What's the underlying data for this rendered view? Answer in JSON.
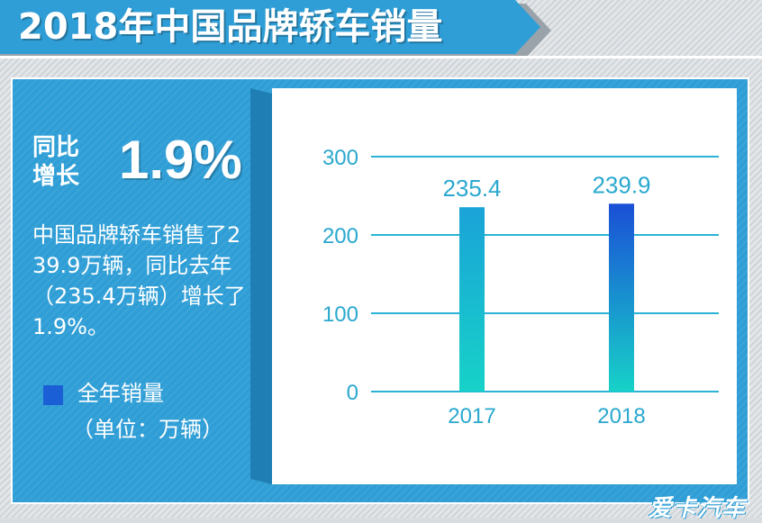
{
  "title": "2018年中国品牌轿车销量",
  "yoy": {
    "label": "同比增长",
    "value": "1.9%"
  },
  "description": "中国品牌轿车销售了239.9万辆，同比去年（235.4万辆）增长了1.9%。",
  "legend": {
    "label": "全年销量",
    "unit": "（单位：万辆）"
  },
  "watermark": "爱卡汽车",
  "colors": {
    "accent": "#2f9ed6",
    "bar_2017_top": "#1aa3d8",
    "bar_2017_bottom": "#17d2c8",
    "bar_2018_top": "#1a4fd6",
    "bar_2018_bottom": "#17d2c8",
    "gridline": "#2ab3d6",
    "legend": "#1a5fd6"
  },
  "chart_data": {
    "type": "bar",
    "categories": [
      "2017",
      "2018"
    ],
    "values": [
      235.4,
      239.9
    ],
    "value_labels": [
      "235.4",
      "239.9"
    ],
    "ylim": [
      0,
      300
    ],
    "yticks": [
      0,
      100,
      200,
      300
    ],
    "grid": true
  }
}
